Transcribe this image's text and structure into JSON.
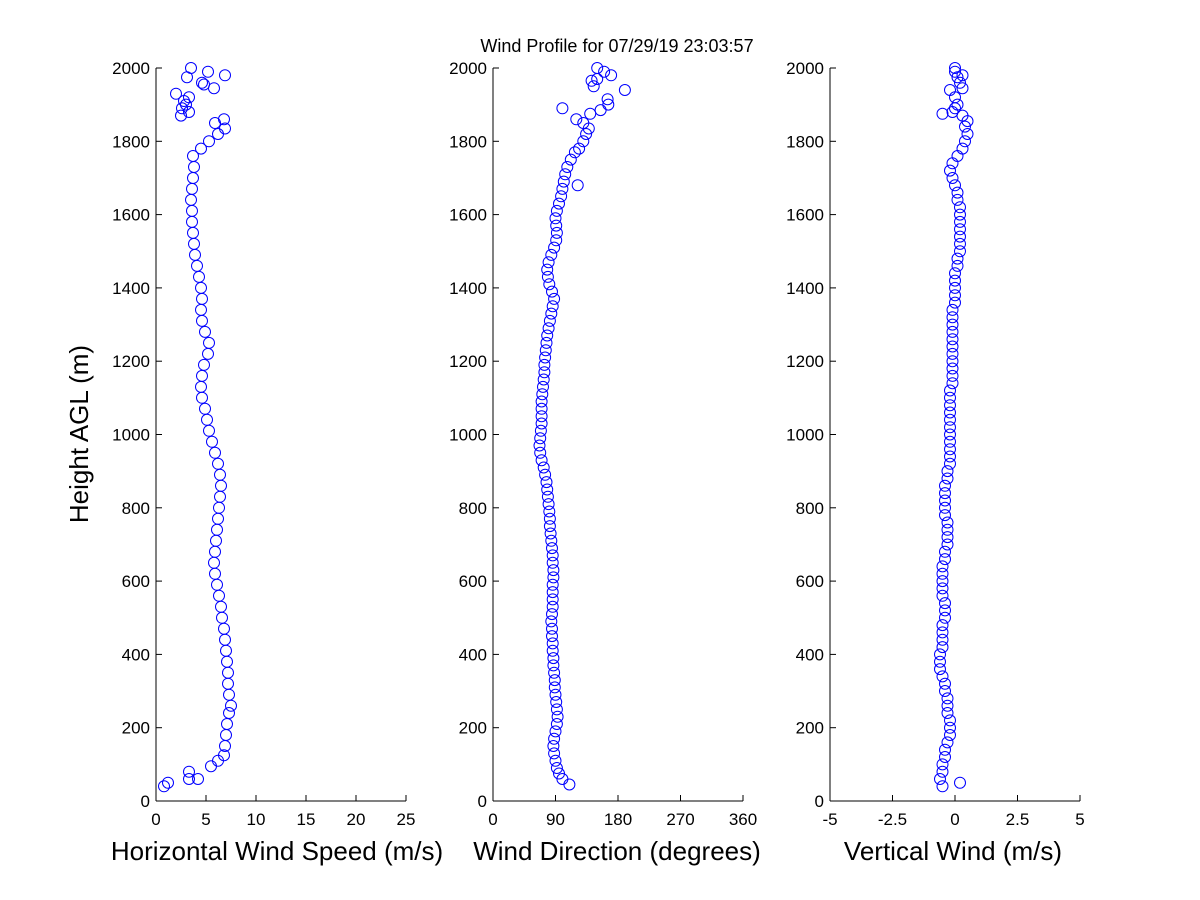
{
  "figure": {
    "title": "Wind Profile for  07/29/19 23:03:57",
    "marker_color": "#0000ff",
    "axis_color": "#000000"
  },
  "chart_data": [
    {
      "type": "scatter",
      "xlabel": "Horizontal Wind Speed (m/s)",
      "ylabel": "Height AGL (m)",
      "xlim": [
        0,
        25
      ],
      "ylim": [
        0,
        2000
      ],
      "xticks": [
        0,
        5,
        10,
        15,
        20,
        25
      ],
      "xtick_labels": [
        "0",
        "5",
        "10",
        "15",
        "20",
        "25"
      ],
      "yticks": [
        0,
        200,
        400,
        600,
        800,
        1000,
        1200,
        1400,
        1600,
        1800,
        2000
      ],
      "ytick_labels": [
        "0",
        "200",
        "400",
        "600",
        "800",
        "1000",
        "1200",
        "1400",
        "1600",
        "1800",
        "2000"
      ],
      "profile": [
        [
          3.3,
          80
        ],
        [
          4.2,
          60
        ],
        [
          5.5,
          95
        ],
        [
          6.2,
          110
        ],
        [
          6.8,
          125
        ],
        [
          6.9,
          150
        ],
        [
          7.0,
          180
        ],
        [
          7.1,
          210
        ],
        [
          7.3,
          240
        ],
        [
          7.5,
          260
        ],
        [
          7.3,
          290
        ],
        [
          7.2,
          320
        ],
        [
          7.2,
          350
        ],
        [
          7.1,
          380
        ],
        [
          7.0,
          410
        ],
        [
          6.9,
          440
        ],
        [
          6.8,
          470
        ],
        [
          6.6,
          500
        ],
        [
          6.5,
          530
        ],
        [
          6.3,
          560
        ],
        [
          6.1,
          590
        ],
        [
          5.9,
          620
        ],
        [
          5.8,
          650
        ],
        [
          5.9,
          680
        ],
        [
          6.0,
          710
        ],
        [
          6.1,
          740
        ],
        [
          6.2,
          770
        ],
        [
          6.3,
          800
        ],
        [
          6.4,
          830
        ],
        [
          6.5,
          860
        ],
        [
          6.4,
          890
        ],
        [
          6.2,
          920
        ],
        [
          5.9,
          950
        ],
        [
          5.6,
          980
        ],
        [
          5.3,
          1010
        ],
        [
          5.1,
          1040
        ],
        [
          4.9,
          1070
        ],
        [
          4.6,
          1100
        ],
        [
          4.5,
          1130
        ],
        [
          4.6,
          1160
        ],
        [
          4.8,
          1190
        ],
        [
          5.2,
          1220
        ],
        [
          5.3,
          1250
        ],
        [
          4.9,
          1280
        ],
        [
          4.6,
          1310
        ],
        [
          4.5,
          1340
        ],
        [
          4.6,
          1370
        ],
        [
          4.5,
          1400
        ],
        [
          4.3,
          1430
        ],
        [
          4.1,
          1460
        ],
        [
          3.9,
          1490
        ],
        [
          3.8,
          1520
        ],
        [
          3.7,
          1550
        ],
        [
          3.6,
          1580
        ],
        [
          3.6,
          1610
        ],
        [
          3.5,
          1640
        ],
        [
          3.6,
          1670
        ],
        [
          3.7,
          1700
        ],
        [
          3.8,
          1730
        ],
        [
          3.7,
          1760
        ],
        [
          4.5,
          1780
        ],
        [
          5.3,
          1800
        ],
        [
          6.2,
          1820
        ],
        [
          6.9,
          1835
        ],
        [
          5.9,
          1850
        ],
        [
          6.8,
          1860
        ]
      ],
      "outliers": [
        [
          0.8,
          40
        ],
        [
          1.2,
          50
        ],
        [
          3.3,
          60
        ],
        [
          2.5,
          1870
        ],
        [
          3.3,
          1880
        ],
        [
          2.6,
          1890
        ],
        [
          3.0,
          1900
        ],
        [
          2.8,
          1910
        ],
        [
          3.3,
          1920
        ],
        [
          2.0,
          1930
        ],
        [
          5.8,
          1945
        ],
        [
          4.8,
          1955
        ],
        [
          3.1,
          1975
        ],
        [
          4.6,
          1960
        ],
        [
          6.9,
          1980
        ],
        [
          5.2,
          1990
        ],
        [
          3.5,
          2000
        ]
      ]
    },
    {
      "type": "scatter",
      "xlabel": "Wind Direction (degrees)",
      "xlim": [
        0,
        360
      ],
      "ylim": [
        0,
        2000
      ],
      "xticks": [
        0,
        90,
        180,
        270,
        360
      ],
      "xtick_labels": [
        "0",
        "90",
        "180",
        "270",
        "360"
      ],
      "yticks": [
        0,
        200,
        400,
        600,
        800,
        1000,
        1200,
        1400,
        1600,
        1800,
        2000
      ],
      "ytick_labels": [
        "0",
        "200",
        "400",
        "600",
        "800",
        "1000",
        "1200",
        "1400",
        "1600",
        "1800",
        "2000"
      ],
      "profile": [
        [
          110,
          45
        ],
        [
          100,
          60
        ],
        [
          95,
          75
        ],
        [
          92,
          90
        ],
        [
          90,
          110
        ],
        [
          88,
          130
        ],
        [
          87,
          150
        ],
        [
          88,
          170
        ],
        [
          90,
          190
        ],
        [
          92,
          210
        ],
        [
          93,
          230
        ],
        [
          92,
          250
        ],
        [
          91,
          270
        ],
        [
          90,
          290
        ],
        [
          89,
          310
        ],
        [
          89,
          330
        ],
        [
          88,
          350
        ],
        [
          87,
          370
        ],
        [
          87,
          390
        ],
        [
          86,
          410
        ],
        [
          86,
          430
        ],
        [
          85,
          450
        ],
        [
          85,
          470
        ],
        [
          84,
          490
        ],
        [
          85,
          510
        ],
        [
          86,
          530
        ],
        [
          86,
          550
        ],
        [
          86,
          570
        ],
        [
          86,
          590
        ],
        [
          87,
          610
        ],
        [
          87,
          630
        ],
        [
          86,
          650
        ],
        [
          86,
          670
        ],
        [
          85,
          690
        ],
        [
          84,
          710
        ],
        [
          83,
          730
        ],
        [
          82,
          750
        ],
        [
          82,
          770
        ],
        [
          81,
          790
        ],
        [
          80,
          810
        ],
        [
          79,
          830
        ],
        [
          78,
          850
        ],
        [
          77,
          870
        ],
        [
          75,
          890
        ],
        [
          73,
          910
        ],
        [
          70,
          930
        ],
        [
          68,
          950
        ],
        [
          67,
          970
        ],
        [
          68,
          990
        ],
        [
          69,
          1010
        ],
        [
          70,
          1030
        ],
        [
          70,
          1050
        ],
        [
          70,
          1070
        ],
        [
          70,
          1090
        ],
        [
          71,
          1110
        ],
        [
          72,
          1130
        ],
        [
          73,
          1150
        ],
        [
          74,
          1170
        ],
        [
          74,
          1190
        ],
        [
          75,
          1210
        ],
        [
          76,
          1230
        ],
        [
          77,
          1250
        ],
        [
          78,
          1270
        ],
        [
          80,
          1290
        ],
        [
          82,
          1310
        ],
        [
          84,
          1330
        ],
        [
          86,
          1350
        ],
        [
          88,
          1370
        ],
        [
          85,
          1390
        ],
        [
          81,
          1410
        ],
        [
          79,
          1430
        ],
        [
          78,
          1450
        ],
        [
          80,
          1470
        ],
        [
          84,
          1490
        ],
        [
          88,
          1510
        ],
        [
          91,
          1530
        ],
        [
          92,
          1550
        ],
        [
          91,
          1570
        ],
        [
          90,
          1590
        ],
        [
          92,
          1610
        ],
        [
          95,
          1630
        ],
        [
          98,
          1650
        ],
        [
          100,
          1670
        ],
        [
          102,
          1690
        ],
        [
          104,
          1710
        ],
        [
          107,
          1730
        ],
        [
          112,
          1750
        ],
        [
          118,
          1770
        ],
        [
          124,
          1780
        ],
        [
          130,
          1800
        ],
        [
          134,
          1820
        ],
        [
          138,
          1835
        ],
        [
          130,
          1850
        ],
        [
          120,
          1860
        ],
        [
          140,
          1875
        ],
        [
          155,
          1885
        ],
        [
          166,
          1900
        ]
      ],
      "outliers": [
        [
          100,
          1890
        ],
        [
          122,
          1680
        ],
        [
          190,
          1940
        ],
        [
          165,
          1915
        ],
        [
          145,
          1950
        ],
        [
          142,
          1965
        ],
        [
          150,
          1970
        ],
        [
          170,
          1980
        ],
        [
          160,
          1990
        ],
        [
          150,
          2000
        ]
      ]
    },
    {
      "type": "scatter",
      "xlabel": "Vertical Wind (m/s)",
      "xlim": [
        -5,
        5
      ],
      "ylim": [
        0,
        2000
      ],
      "xticks": [
        -5,
        -2.5,
        0,
        2.5,
        5
      ],
      "xtick_labels": [
        "-5",
        "-2.5",
        "0",
        "2.5",
        "5"
      ],
      "yticks": [
        0,
        200,
        400,
        600,
        800,
        1000,
        1200,
        1400,
        1600,
        1800,
        2000
      ],
      "ytick_labels": [
        "0",
        "200",
        "400",
        "600",
        "800",
        "1000",
        "1200",
        "1400",
        "1600",
        "1800",
        "2000"
      ],
      "profile": [
        [
          -0.5,
          40
        ],
        [
          -0.6,
          60
        ],
        [
          -0.5,
          80
        ],
        [
          -0.5,
          100
        ],
        [
          -0.4,
          120
        ],
        [
          -0.4,
          140
        ],
        [
          -0.3,
          160
        ],
        [
          -0.2,
          180
        ],
        [
          -0.2,
          200
        ],
        [
          -0.2,
          220
        ],
        [
          -0.3,
          240
        ],
        [
          -0.3,
          260
        ],
        [
          -0.3,
          280
        ],
        [
          -0.4,
          300
        ],
        [
          -0.4,
          320
        ],
        [
          -0.5,
          340
        ],
        [
          -0.6,
          360
        ],
        [
          -0.6,
          380
        ],
        [
          -0.6,
          400
        ],
        [
          -0.5,
          420
        ],
        [
          -0.5,
          440
        ],
        [
          -0.5,
          460
        ],
        [
          -0.5,
          480
        ],
        [
          -0.4,
          500
        ],
        [
          -0.4,
          520
        ],
        [
          -0.4,
          540
        ],
        [
          -0.5,
          560
        ],
        [
          -0.5,
          580
        ],
        [
          -0.5,
          600
        ],
        [
          -0.5,
          620
        ],
        [
          -0.5,
          640
        ],
        [
          -0.4,
          660
        ],
        [
          -0.4,
          680
        ],
        [
          -0.3,
          700
        ],
        [
          -0.3,
          720
        ],
        [
          -0.3,
          740
        ],
        [
          -0.3,
          760
        ],
        [
          -0.4,
          780
        ],
        [
          -0.4,
          800
        ],
        [
          -0.4,
          820
        ],
        [
          -0.4,
          840
        ],
        [
          -0.4,
          860
        ],
        [
          -0.3,
          880
        ],
        [
          -0.3,
          900
        ],
        [
          -0.2,
          920
        ],
        [
          -0.2,
          940
        ],
        [
          -0.2,
          960
        ],
        [
          -0.2,
          980
        ],
        [
          -0.2,
          1000
        ],
        [
          -0.2,
          1020
        ],
        [
          -0.2,
          1040
        ],
        [
          -0.2,
          1060
        ],
        [
          -0.2,
          1080
        ],
        [
          -0.2,
          1100
        ],
        [
          -0.2,
          1120
        ],
        [
          -0.1,
          1140
        ],
        [
          -0.1,
          1160
        ],
        [
          -0.1,
          1180
        ],
        [
          -0.1,
          1200
        ],
        [
          -0.1,
          1220
        ],
        [
          -0.1,
          1240
        ],
        [
          -0.1,
          1260
        ],
        [
          -0.1,
          1280
        ],
        [
          -0.1,
          1300
        ],
        [
          -0.1,
          1320
        ],
        [
          -0.1,
          1340
        ],
        [
          0.0,
          1360
        ],
        [
          0.0,
          1380
        ],
        [
          0.0,
          1400
        ],
        [
          0.0,
          1420
        ],
        [
          0.0,
          1440
        ],
        [
          0.1,
          1460
        ],
        [
          0.1,
          1480
        ],
        [
          0.2,
          1500
        ],
        [
          0.2,
          1520
        ],
        [
          0.2,
          1540
        ],
        [
          0.2,
          1560
        ],
        [
          0.2,
          1580
        ],
        [
          0.2,
          1600
        ],
        [
          0.2,
          1620
        ],
        [
          0.1,
          1640
        ],
        [
          0.1,
          1660
        ],
        [
          0.0,
          1680
        ],
        [
          -0.1,
          1700
        ],
        [
          -0.2,
          1720
        ],
        [
          -0.1,
          1740
        ],
        [
          0.1,
          1760
        ],
        [
          0.3,
          1780
        ],
        [
          0.4,
          1800
        ],
        [
          0.5,
          1820
        ],
        [
          0.4,
          1840
        ],
        [
          0.5,
          1855
        ],
        [
          0.3,
          1870
        ],
        [
          -0.1,
          1880
        ],
        [
          0.0,
          1890
        ],
        [
          0.1,
          1900
        ]
      ],
      "outliers": [
        [
          0.2,
          50
        ],
        [
          -0.5,
          1875
        ],
        [
          0.0,
          1920
        ],
        [
          -0.2,
          1940
        ],
        [
          0.3,
          1945
        ],
        [
          0.2,
          1960
        ],
        [
          0.1,
          1975
        ],
        [
          0.3,
          1980
        ],
        [
          0.0,
          1990
        ],
        [
          0.0,
          2000
        ]
      ]
    }
  ]
}
